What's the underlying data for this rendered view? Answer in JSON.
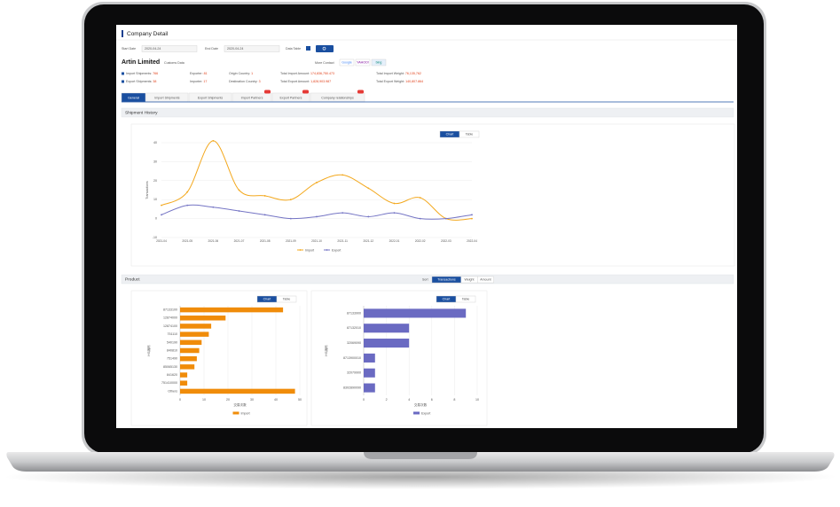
{
  "header": {
    "title": "Company Detail"
  },
  "filters": {
    "start_date_label": "Start Date",
    "start_date": "2020-04-24",
    "end_date_label": "End Date",
    "end_date": "2020-04-24",
    "data_table_label": "Data Table"
  },
  "company": {
    "name": "Artin Limited",
    "customs_data": "Customs Data",
    "more_contact": "More Contact",
    "search_engines": [
      "Google",
      "YAHOO!",
      "bing"
    ],
    "stats": [
      [
        {
          "label": "Import Shipments:",
          "value": "766"
        },
        {
          "label": "Exporter:",
          "value": "81"
        },
        {
          "label": "Origin Country:",
          "value": "1"
        },
        {
          "label": "Total Import Amount:",
          "value": "174,836,750.473"
        },
        {
          "label": "Total Import Weight:",
          "value": "76,135,762"
        }
      ],
      [
        {
          "label": "Export Shipments:",
          "value": "38"
        },
        {
          "label": "Importer:",
          "value": "17"
        },
        {
          "label": "Destination Country:",
          "value": "3"
        },
        {
          "label": "Total Export Amount:",
          "value": "1,828,903.987"
        },
        {
          "label": "Total Export Weight:",
          "value": "140,807.864"
        }
      ]
    ]
  },
  "tabs": [
    "General",
    "Import Shipments",
    "Export Shipments",
    "Import Partners",
    "Export Partners",
    "Company relationships"
  ],
  "shipment_history": {
    "title": "Shipment History",
    "buttons": [
      "Chart",
      "Table"
    ],
    "chart_data": {
      "type": "line",
      "y_label": "Transactions",
      "categories": [
        "2021-04",
        "2021-05",
        "2021-06",
        "2021-07",
        "2021-08",
        "2021-09",
        "2021-10",
        "2021-11",
        "2021-12",
        "2022-01",
        "2022-02",
        "2022-03",
        "2022-04"
      ],
      "series": [
        {
          "name": "Import",
          "color": "#f3a81d",
          "values": [
            7,
            14,
            41,
            15,
            12,
            10,
            19,
            23,
            16,
            8,
            11,
            0,
            0
          ]
        },
        {
          "name": "Export",
          "color": "#7474c4",
          "values": [
            2,
            7,
            6,
            4,
            2,
            0,
            1,
            3,
            1,
            3,
            0,
            0,
            2
          ]
        }
      ],
      "ylim": [
        -10,
        40
      ],
      "yticks": [
        -10,
        0,
        10,
        20,
        30,
        40
      ],
      "grid": true
    }
  },
  "product": {
    "title": "Product",
    "sort_label": "Sort",
    "sort_options": [
      "Transactions",
      "Weight",
      "Amount"
    ],
    "charts": [
      {
        "buttons": [
          "Chart",
          "Table"
        ],
        "chart_data": {
          "type": "hbar",
          "x_label": "交易次数",
          "y_label": "HS编码",
          "categories": [
            "87133100",
            "12874000",
            "12874100",
            "751110",
            "540190",
            "840810",
            "751490",
            "85065130",
            "841620",
            "751410000",
            "Others"
          ],
          "series": [
            {
              "name": "Import",
              "color": "#f08c0a",
              "values": [
                43,
                19,
                13,
                12,
                9,
                8,
                7,
                6,
                3,
                3,
                48
              ]
            }
          ],
          "xlim": [
            0,
            50
          ],
          "xticks": [
            0,
            10,
            20,
            30,
            40,
            50
          ],
          "grid": true
        }
      },
      {
        "buttons": [
          "Chart",
          "Table"
        ],
        "chart_data": {
          "type": "hbar",
          "x_label": "交易次数",
          "y_label": "HS编码",
          "categories": [
            "87133900",
            "87132010",
            "32069090",
            "8713900010",
            "32079900",
            "8302890090"
          ],
          "series": [
            {
              "name": "Export",
              "color": "#6a6ac2",
              "values": [
                9,
                4,
                4,
                1,
                1,
                1
              ]
            }
          ],
          "xlim": [
            0,
            10
          ],
          "xticks": [
            0,
            2,
            4,
            6,
            8,
            10
          ],
          "grid": true
        }
      }
    ]
  }
}
